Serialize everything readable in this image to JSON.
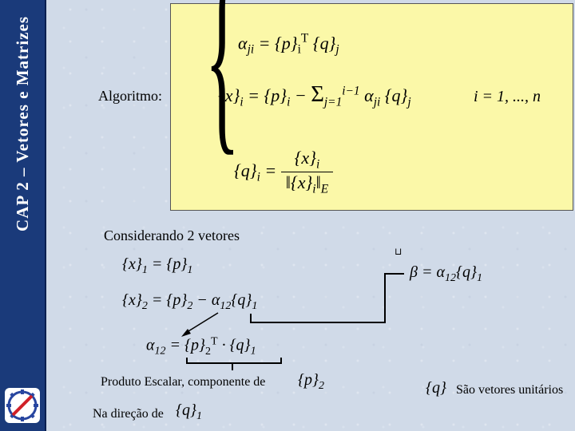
{
  "sidebar": {
    "chapter_text": "CAP 2 – Vetores e Matrizes"
  },
  "labels": {
    "algoritmo": "Algoritmo:",
    "considerando": "Considerando 2 vetores",
    "produto": "Produto Escalar, componente de",
    "na_direcao": "Na direção de",
    "unit": "São vetores unitários",
    "i_range": "i = 1, ..., n"
  },
  "equations": {
    "alpha_def": "α<sub>ji</sub> = {p}<span class='norm'><sub>i</sub><sup>T</sup></span> {q}<sub>j</sub>",
    "x_def": "{x}<sub>i</sub> = {p}<sub>i</sub> − <span class='norm' style='font-size:1.3em'>Σ</span><sub>j=1</sub><sup>i−1</sup> α<sub>ji</sub> {q}<sub>j</sub>",
    "q_def": "{q}<sub>i</sub> = <span style='display:inline-block;vertical-align:middle'><span style='display:block;text-align:center;border-bottom:1px solid #000;padding:0 6px'>{x}<sub>i</sub></span><span style='display:block;text-align:center;padding:0 6px'>‖{x}<sub>i</sub>‖<sub>E</sub></span></span>",
    "x1": "{x}<sub>1</sub> = {p}<sub>1</sub>",
    "x2": "{x}<sub>2</sub> = {p}<sub>2</sub> − α<sub>12</sub>{q}<sub>1</sub>",
    "alpha12": "α<sub>12</sub> = {p}<span class='norm'><sub>2</sub><sup>T</sup></span> · {q}<sub>1</sub>",
    "beta": "β = α<sub>12</sub>{q}<sub>1</sub>",
    "p2": "{p}<sub>2</sub>",
    "q1_small": "{q}<sub>1</sub>",
    "q_small": "{q}"
  },
  "colors": {
    "sidebar_bg": "#1a3a7a",
    "page_bg": "#d0dae8",
    "algo_box_bg": "#fbf8a8",
    "text": "#000000",
    "logo_blue": "#2846a0",
    "logo_red": "#d02028"
  }
}
